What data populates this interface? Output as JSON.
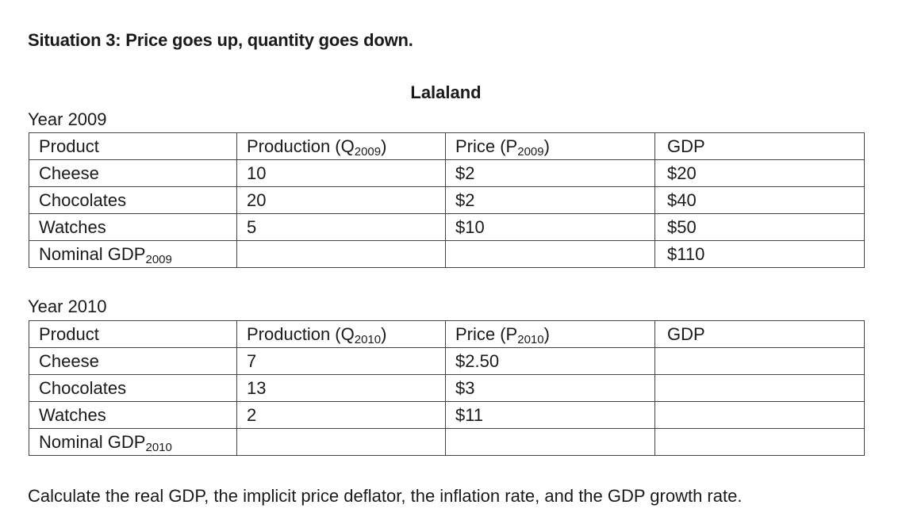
{
  "heading": "Situation 3: Price goes up, quantity goes down.",
  "country": "Lalaland",
  "table2009": {
    "year_label": "Year 2009",
    "headers": {
      "product": "Product",
      "production": "Production (Q",
      "production_sub": "2009",
      "price": "Price (P",
      "price_sub": "2009",
      "paren": ")",
      "gdp": "GDP"
    },
    "rows": [
      {
        "product": "Cheese",
        "quantity": "10",
        "price": "$2",
        "gdp": "$20"
      },
      {
        "product": "Chocolates",
        "quantity": "20",
        "price": "$2",
        "gdp": "$40"
      },
      {
        "product": "Watches",
        "quantity": "5",
        "price": "$10",
        "gdp": "$50"
      }
    ],
    "total": {
      "label": "Nominal GDP",
      "label_sub": "2009",
      "gdp": "$110"
    }
  },
  "table2010": {
    "year_label": "Year 2010",
    "headers": {
      "product": "Product",
      "production": "Production (Q",
      "production_sub": "2010",
      "price": "Price (P",
      "price_sub": "2010",
      "paren": ")",
      "gdp": "GDP"
    },
    "rows": [
      {
        "product": "Cheese",
        "quantity": "7",
        "price": "$2.50",
        "gdp": ""
      },
      {
        "product": "Chocolates",
        "quantity": "13",
        "price": "$3",
        "gdp": ""
      },
      {
        "product": "Watches",
        "quantity": "2",
        "price": "$11",
        "gdp": ""
      }
    ],
    "total": {
      "label": "Nominal GDP",
      "label_sub": "2010",
      "gdp": ""
    }
  },
  "footer": "Calculate the real GDP, the implicit price deflator, the inflation rate, and the GDP growth rate."
}
